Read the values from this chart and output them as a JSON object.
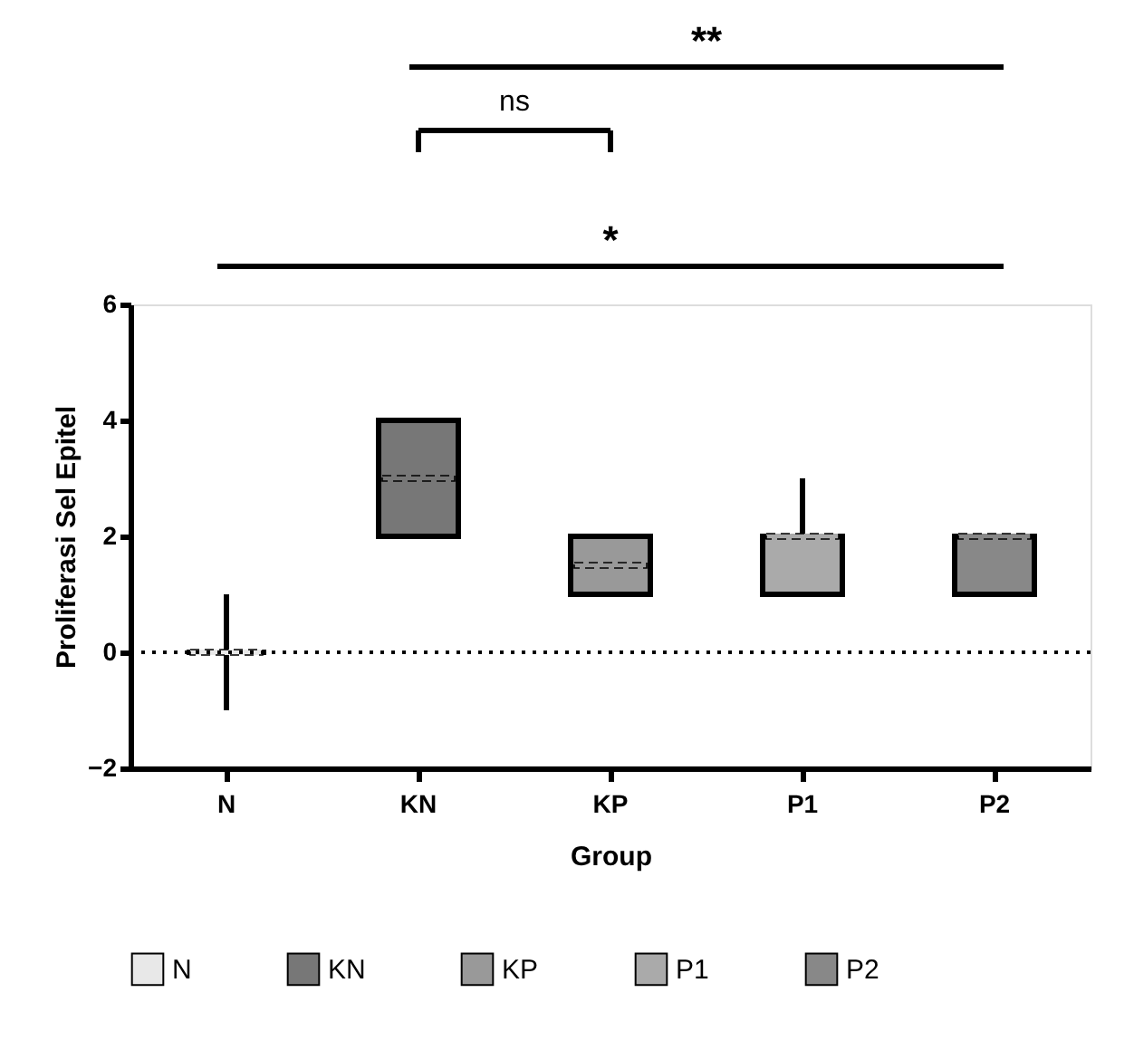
{
  "chart_data": {
    "type": "box",
    "xlabel": "Group",
    "ylabel": "Proliferasi Sel Epitel",
    "categories": [
      "N",
      "KN",
      "KP",
      "P1",
      "P2"
    ],
    "series": [
      {
        "name": "N",
        "color": "#e8e8e8",
        "boxes": [
          {
            "low": -1,
            "q1": 0,
            "median": 0,
            "q3": 0,
            "high": 1
          },
          null,
          null,
          null,
          null
        ]
      },
      {
        "name": "KN",
        "color": "#777777",
        "boxes": [
          null,
          {
            "low": 2,
            "q1": 2,
            "median": 3,
            "q3": 4,
            "high": 4
          },
          null,
          null,
          null
        ]
      },
      {
        "name": "KP",
        "color": "#999999",
        "boxes": [
          null,
          null,
          {
            "low": 1,
            "q1": 1,
            "median": 1.5,
            "q3": 2,
            "high": 2
          },
          null,
          null
        ]
      },
      {
        "name": "P1",
        "color": "#aaaaaa",
        "boxes": [
          null,
          null,
          null,
          {
            "low": 1,
            "q1": 1,
            "median": 2,
            "q3": 2,
            "high": 3
          },
          null
        ]
      },
      {
        "name": "P2",
        "color": "#888888",
        "boxes": [
          null,
          null,
          null,
          null,
          {
            "low": 1,
            "q1": 1,
            "median": 2,
            "q3": 2,
            "high": 2
          }
        ]
      }
    ],
    "ylim": [
      -2,
      6
    ],
    "yticks": [
      -2,
      0,
      2,
      4,
      6
    ],
    "grid": false,
    "legend": "bottom",
    "ref_lines": [
      {
        "axis": "y",
        "value": 0,
        "line_style": "dotted",
        "color": "#000000"
      }
    ],
    "annotations": [
      "**",
      "ns",
      "*"
    ]
  }
}
